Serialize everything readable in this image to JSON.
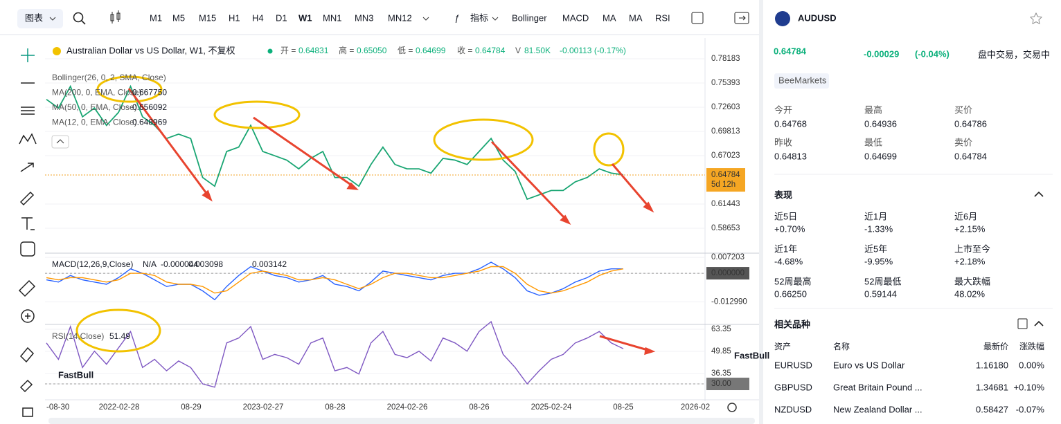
{
  "toolbar": {
    "chart_menu": "图表",
    "intervals": [
      "M1",
      "M5",
      "M15",
      "H1",
      "H4",
      "D1",
      "W1",
      "MN1",
      "MN3",
      "MN12"
    ],
    "active_interval": "W1",
    "indicators_button": "指标",
    "indicators": [
      "Bollinger",
      "MACD",
      "MA",
      "MA",
      "RSI"
    ]
  },
  "legend": {
    "title": "Australian Dollar vs US Dollar, W1, 不复权",
    "open_label": "开 =",
    "open": "0.64831",
    "high_label": "高 =",
    "high": "0.65050",
    "low_label": "低 =",
    "low": "0.64699",
    "close_label": "收 =",
    "close": "0.64784",
    "volume_label": "V",
    "volume": "81.50K",
    "change": "-0.00113 (-0.17%)",
    "indicators": [
      {
        "name": "Bollinger(26, 0, 2, SMA, Close)"
      },
      {
        "name": "MA(200, 0, EMA, Close)",
        "value": "0.667750"
      },
      {
        "name": "MA(50, 0, EMA, Close)",
        "value": "0.656092"
      },
      {
        "name": "MA(12, 0, EMA, Close)",
        "value": "0.648969"
      }
    ],
    "macd": {
      "name": "MACD(12,26,9,Close)",
      "hist": "N/A",
      "v1": "-0.000044",
      "v2": "0.003098",
      "v3": "0.003142"
    },
    "rsi": {
      "name": "RSI(14,Close)",
      "value": "51.49"
    }
  },
  "watermark": "FastBull",
  "xticks": [
    "-08-30",
    "2022-02-28",
    "08-29",
    "2023-02-27",
    "08-28",
    "2024-02-26",
    "08-26",
    "2025-02-24",
    "08-25",
    "2026-02"
  ],
  "chart_data": [
    {
      "type": "line",
      "color": "#18a572",
      "ylim": [
        0.5586,
        0.8057
      ],
      "yticks": [
        0.78183,
        0.75393,
        0.72603,
        0.69813,
        0.67023,
        0.61443,
        0.58653
      ],
      "last_price": 0.64784,
      "countdown": "5d 12h",
      "values": [
        0.735,
        0.725,
        0.75,
        0.715,
        0.725,
        0.705,
        0.72,
        0.75,
        0.715,
        0.705,
        0.69,
        0.695,
        0.69,
        0.645,
        0.635,
        0.675,
        0.68,
        0.705,
        0.675,
        0.67,
        0.665,
        0.655,
        0.667,
        0.675,
        0.645,
        0.645,
        0.635,
        0.66,
        0.68,
        0.66,
        0.655,
        0.655,
        0.65,
        0.667,
        0.665,
        0.66,
        0.675,
        0.69,
        0.665,
        0.652,
        0.62,
        0.625,
        0.63,
        0.63,
        0.64,
        0.645,
        0.655,
        0.65,
        0.648
      ]
    },
    {
      "type": "line",
      "ylim": [
        -0.0229,
        0.0085
      ],
      "yticks": [
        0.007203,
        {
          "value": 0,
          "label": "0.000000"
        },
        {
          "value": -0.01299,
          "label": "-0.012990"
        }
      ],
      "series": [
        {
          "color": "#2962ff",
          "values": [
            -0.003,
            -0.004,
            -0.001,
            -0.003,
            -0.004,
            -0.005,
            -0.002,
            0.002,
            0,
            -0.003,
            -0.006,
            -0.005,
            -0.005,
            -0.008,
            -0.012,
            -0.006,
            -0.001,
            0.003,
            0.001,
            -0.001,
            -0.002,
            -0.004,
            -0.003,
            -0.001,
            -0.005,
            -0.006,
            -0.008,
            -0.004,
            0.001,
            0,
            -0.001,
            -0.002,
            -0.003,
            -0.001,
            0,
            0,
            0.002,
            0.005,
            0.002,
            -0.002,
            -0.008,
            -0.01,
            -0.009,
            -0.007,
            -0.004,
            -0.002,
            0.001,
            0.002,
            0.002
          ]
        },
        {
          "color": "#ff9800",
          "values": [
            -0.002,
            -0.003,
            -0.002,
            -0.002,
            -0.003,
            -0.004,
            -0.003,
            0,
            0,
            -0.001,
            -0.004,
            -0.005,
            -0.005,
            -0.006,
            -0.009,
            -0.008,
            -0.004,
            0,
            0.001,
            0,
            -0.001,
            -0.003,
            -0.003,
            -0.002,
            -0.003,
            -0.005,
            -0.007,
            -0.005,
            -0.002,
            0,
            0,
            -0.001,
            -0.002,
            -0.002,
            -0.001,
            0,
            0.001,
            0.003,
            0.003,
            0,
            -0.005,
            -0.008,
            -0.009,
            -0.008,
            -0.006,
            -0.004,
            -0.001,
            0.001,
            0.002
          ]
        }
      ]
    },
    {
      "type": "line",
      "color": "#7e57c2",
      "ylim": [
        20.3,
        65.9
      ],
      "yticks": [
        63.35,
        49.85,
        36.35,
        {
          "value": 30,
          "label": "30.00"
        }
      ],
      "values": [
        55,
        45,
        65,
        40,
        50,
        42,
        52,
        62,
        40,
        45,
        38,
        44,
        40,
        30,
        28,
        55,
        58,
        65,
        45,
        48,
        46,
        42,
        55,
        58,
        38,
        40,
        36,
        55,
        62,
        48,
        46,
        50,
        44,
        58,
        55,
        50,
        62,
        68,
        48,
        40,
        30,
        38,
        45,
        48,
        55,
        58,
        62,
        55,
        51.49
      ]
    }
  ],
  "panel": {
    "symbol": "AUDUSD",
    "price": "0.64784",
    "change": "-0.00029",
    "change_pct": "(-0.04%)",
    "status": "盘中交易，交易中",
    "broker": "BeeMarkets",
    "stats": [
      {
        "label": "今开",
        "value": "0.64768"
      },
      {
        "label": "最高",
        "value": "0.64936"
      },
      {
        "label": "买价",
        "value": "0.64786"
      },
      {
        "label": "昨收",
        "value": "0.64813"
      },
      {
        "label": "最低",
        "value": "0.64699"
      },
      {
        "label": "卖价",
        "value": "0.64784"
      }
    ],
    "perf_title": "表现",
    "perf": [
      {
        "label": "近5日",
        "value": "+0.70%"
      },
      {
        "label": "近1月",
        "value": "-1.33%"
      },
      {
        "label": "近6月",
        "value": "+2.15%"
      },
      {
        "label": "近1年",
        "value": "-4.68%"
      },
      {
        "label": "近5年",
        "value": "-9.95%"
      },
      {
        "label": "上市至今",
        "value": "+2.18%"
      },
      {
        "label": "52周最高",
        "value": "0.66250"
      },
      {
        "label": "52周最低",
        "value": "0.59144"
      },
      {
        "label": "最大跌幅",
        "value": "48.02%"
      }
    ],
    "related_title": "相关品种",
    "related_header": [
      "资产",
      "名称",
      "最新价",
      "涨跌幅"
    ],
    "related": [
      [
        "EURUSD",
        "Euro vs US Dollar",
        "1.16180",
        "0.00%"
      ],
      [
        "GBPUSD",
        "Great Britain Pound ...",
        "1.34681",
        "+0.10%"
      ],
      [
        "NZDUSD",
        "New Zealand Dollar ...",
        "0.58427",
        "-0.07%"
      ]
    ]
  }
}
